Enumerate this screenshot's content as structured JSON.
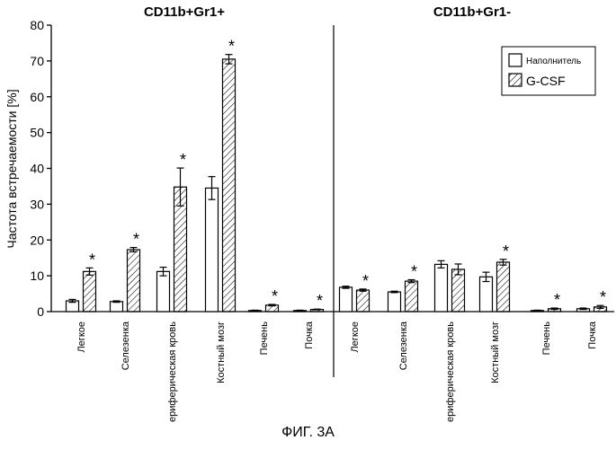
{
  "caption": "ФИГ. 3А",
  "chart_data": {
    "type": "bar",
    "ylabel": "Частота встречаемости [%]",
    "ylim": [
      0,
      80
    ],
    "yticks": [
      0,
      10,
      20,
      30,
      40,
      50,
      60,
      70,
      80
    ],
    "significance_marker": "*",
    "legend": {
      "placement": "top-right",
      "entries": [
        "Наполнитель",
        "G-CSF"
      ]
    },
    "panels": [
      {
        "title": "CD11b+Gr1+",
        "categories": [
          "Легкое",
          "Селезенка",
          "Периферическая кровь",
          "Костный мозг",
          "Печень",
          "Почка"
        ],
        "series": [
          {
            "name": "Наполнитель",
            "pattern": "open",
            "values": [
              3.0,
              2.8,
              11.2,
              34.5,
              0.3,
              0.3
            ],
            "errors": [
              0.4,
              0.2,
              1.2,
              3.2,
              0.1,
              0.1
            ]
          },
          {
            "name": "G-CSF",
            "pattern": "hatched",
            "values": [
              11.2,
              17.3,
              34.8,
              70.5,
              1.8,
              0.6
            ],
            "errors": [
              1.0,
              0.6,
              5.3,
              1.3,
              0.2,
              0.1
            ],
            "significant": [
              true,
              true,
              true,
              true,
              true,
              true
            ]
          }
        ]
      },
      {
        "title": "CD11b+Gr1-",
        "categories": [
          "Легкое",
          "Селезенка",
          "Периферическая кровь",
          "Костный мозг",
          "Печень",
          "Почка"
        ],
        "series": [
          {
            "name": "Наполнитель",
            "pattern": "open",
            "values": [
              6.8,
              5.5,
              13.2,
              9.7,
              0.3,
              0.8
            ],
            "errors": [
              0.3,
              0.2,
              1.0,
              1.3,
              0.1,
              0.2
            ]
          },
          {
            "name": "G-CSF",
            "pattern": "hatched",
            "values": [
              6.0,
              8.5,
              11.8,
              13.8,
              0.8,
              1.3
            ],
            "errors": [
              0.3,
              0.4,
              1.5,
              0.8,
              0.2,
              0.4
            ],
            "significant": [
              true,
              true,
              false,
              true,
              true,
              true
            ]
          }
        ]
      }
    ]
  }
}
